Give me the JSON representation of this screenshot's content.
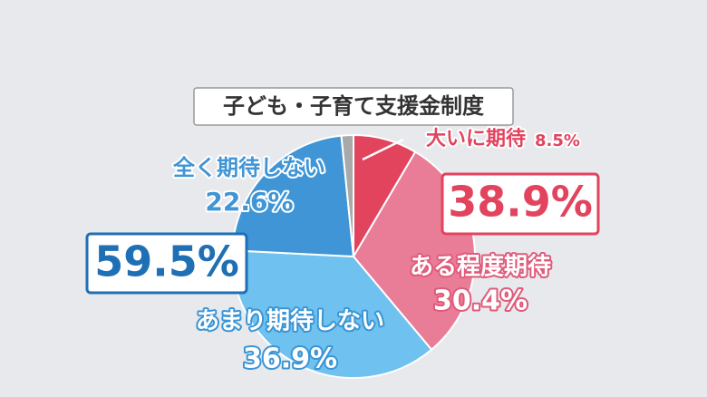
{
  "chart_data": {
    "type": "pie",
    "title": "子ども・子育て支援金制度",
    "categories": [
      "大いに期待",
      "ある程度期待",
      "あまり期待しない",
      "全く期待しない",
      null
    ],
    "values": [
      8.5,
      30.4,
      36.9,
      22.6,
      1.6
    ],
    "value_labels": [
      "8.5%",
      "30.4%",
      "36.9%",
      "22.6%",
      null
    ],
    "colors": [
      "#e2445e",
      "#e97d98",
      "#6fc1ef",
      "#3f95d5",
      "#a9a9a9"
    ],
    "annotations": [
      "38.9%",
      "59.5%"
    ]
  }
}
